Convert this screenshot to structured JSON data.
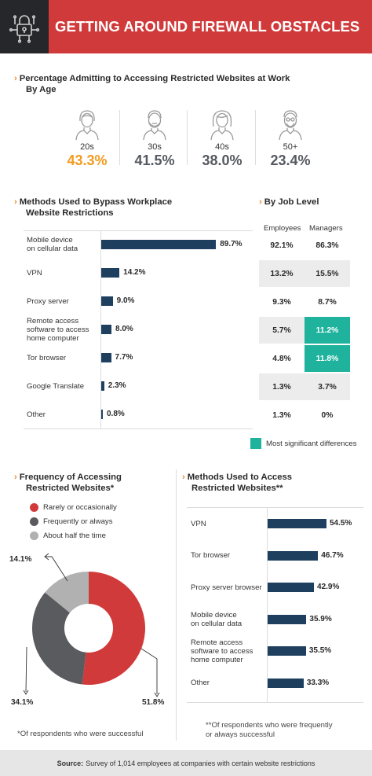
{
  "header": {
    "title": "GETTING AROUND FIREWALL OBSTACLES",
    "icon": "padlock-circuit-icon",
    "colors": {
      "icon_bg": "#26272b",
      "title_bg": "#d13a3a"
    }
  },
  "age_section": {
    "title_line1": "Percentage Admitting to Accessing Restricted Websites at Work",
    "title_line2": "By Age",
    "groups": [
      {
        "label": "20s",
        "value": "43.3%",
        "icon": "young-person-icon",
        "highlight": true
      },
      {
        "label": "30s",
        "value": "41.5%",
        "icon": "bearded-man-icon",
        "highlight": false
      },
      {
        "label": "40s",
        "value": "38.0%",
        "icon": "woman-icon",
        "highlight": false
      },
      {
        "label": "50+",
        "value": "23.4%",
        "icon": "older-man-icon",
        "highlight": false
      }
    ],
    "colors": {
      "highlight": "#f29b1f",
      "normal": "#555a60"
    }
  },
  "methods_section": {
    "title_line1": "Methods Used to Bypass Workplace",
    "title_line2": "Website Restrictions"
  },
  "job_level": {
    "title": "By Job Level",
    "col_employees": "Employees",
    "col_managers": "Managers",
    "rows": [
      {
        "employees": "92.1%",
        "managers": "86.3%",
        "shaded": false,
        "managers_significant": false
      },
      {
        "employees": "13.2%",
        "managers": "15.5%",
        "shaded": true,
        "managers_significant": false
      },
      {
        "employees": "9.3%",
        "managers": "8.7%",
        "shaded": false,
        "managers_significant": false
      },
      {
        "employees": "5.7%",
        "managers": "11.2%",
        "shaded": true,
        "managers_significant": true
      },
      {
        "employees": "4.8%",
        "managers": "11.8%",
        "shaded": false,
        "managers_significant": true
      },
      {
        "employees": "1.3%",
        "managers": "3.7%",
        "shaded": true,
        "managers_significant": false
      },
      {
        "employees": "1.3%",
        "managers": "0%",
        "shaded": false,
        "managers_significant": false
      }
    ],
    "legend": "Most significant differences",
    "colors": {
      "significant": "#1fb39e",
      "shade": "#ececec"
    }
  },
  "frequency_section": {
    "title_line1": "Frequency of Accessing",
    "title_line2": "Restricted Websites*",
    "legend": [
      {
        "label": "Rarely or occasionally",
        "color": "#d13a3a"
      },
      {
        "label": "Frequently or always",
        "color": "#5a5b5e"
      },
      {
        "label": "About half the time",
        "color": "#b1b1b1"
      }
    ],
    "footnote": "*Of respondents who were successful"
  },
  "access_section": {
    "title_line1": "Methods Used to Access",
    "title_line2": "Restricted Websites**",
    "footnote_line1": "**Of respondents who were frequently",
    "footnote_line2": "or always successful"
  },
  "source": {
    "label": "Source:",
    "text": "Survey of 1,014 employees at companies with certain website restrictions"
  },
  "chart_data": [
    {
      "type": "bar",
      "orientation": "horizontal",
      "categories": [
        [
          "Mobile device",
          "on cellular data"
        ],
        [
          "VPN"
        ],
        [
          "Proxy server"
        ],
        [
          "Remote access",
          "software to access",
          "home computer"
        ],
        [
          "Tor browser"
        ],
        [
          "Google Translate"
        ],
        [
          "Other"
        ]
      ],
      "values": [
        89.7,
        14.2,
        9.0,
        8.0,
        7.7,
        2.3,
        0.8
      ],
      "value_labels": [
        "89.7%",
        "14.2%",
        "9.0%",
        "8.0%",
        "7.7%",
        "2.3%",
        "0.8%"
      ],
      "xlim": [
        0,
        100
      ],
      "bar_color": "#1f3f5f"
    },
    {
      "type": "pie",
      "donut": true,
      "labels": [
        "Rarely or occasionally",
        "Frequently or always",
        "About half the time"
      ],
      "values": [
        51.8,
        34.1,
        14.1
      ],
      "value_labels": [
        "51.8%",
        "34.1%",
        "14.1%"
      ],
      "colors": [
        "#d13a3a",
        "#5a5b5e",
        "#b1b1b1"
      ]
    },
    {
      "type": "bar",
      "orientation": "horizontal",
      "categories": [
        [
          "VPN"
        ],
        [
          "Tor browser"
        ],
        [
          "Proxy server browser"
        ],
        [
          "Mobile device",
          "on cellular data"
        ],
        [
          "Remote access",
          "software to access",
          "home computer"
        ],
        [
          "Other"
        ]
      ],
      "values": [
        54.5,
        46.7,
        42.9,
        35.9,
        35.5,
        33.3
      ],
      "value_labels": [
        "54.5%",
        "46.7%",
        "42.9%",
        "35.9%",
        "35.5%",
        "33.3%"
      ],
      "xlim": [
        0,
        100
      ],
      "bar_color": "#1f3f5f"
    }
  ]
}
